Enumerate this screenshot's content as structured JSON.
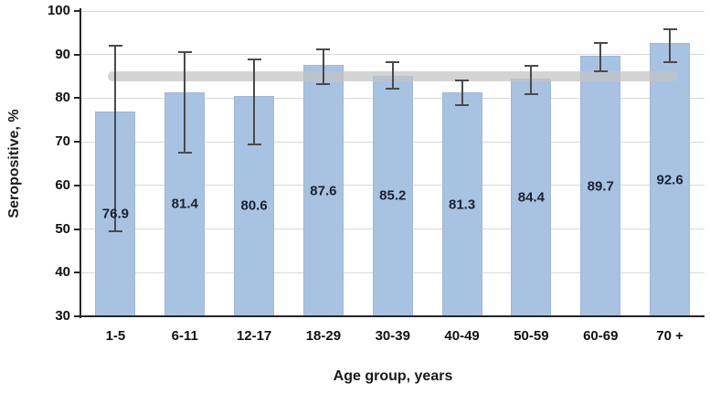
{
  "chart_data": {
    "type": "bar",
    "title": "",
    "xlabel": "Age group, years",
    "ylabel": "Seropositive, %",
    "categories": [
      "1-5",
      "6-11",
      "12-17",
      "18-29",
      "30-39",
      "40-49",
      "50-59",
      "60-69",
      "70 +"
    ],
    "values": [
      76.9,
      81.4,
      80.6,
      87.6,
      85.2,
      81.3,
      84.4,
      89.7,
      92.6
    ],
    "error_low": [
      49.5,
      67.5,
      69.3,
      83.2,
      82.1,
      78.4,
      81.0,
      86.2,
      88.2
    ],
    "error_high": [
      92.0,
      90.5,
      88.8,
      91.3,
      88.2,
      84.1,
      87.5,
      92.7,
      95.8
    ],
    "reference_line": {
      "value": 85,
      "shape": "thick-rounded-band"
    },
    "ylim": [
      30,
      100
    ],
    "yticks": [
      100,
      90,
      80,
      70,
      60,
      50,
      40,
      30
    ],
    "grid": true,
    "legend": false,
    "data_labels_position": "center-of-bar",
    "colors": {
      "bar_fill": "#A8C3E2",
      "bar_border": "#9DB8DA",
      "error_bar": "#4A4A4A",
      "reference_band": "#C3C3C3",
      "gridline": "#D9D9D9",
      "axis_line": "#262626",
      "data_label": "#1B2130",
      "tick_label": "#111111"
    }
  }
}
